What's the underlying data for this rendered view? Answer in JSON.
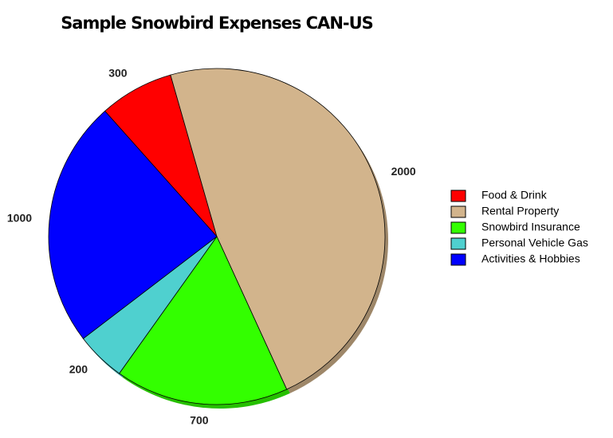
{
  "chart_data": {
    "type": "pie",
    "title": "Sample Snowbird Expenses CAN-US",
    "categories": [
      "Food & Drink",
      "Rental Property",
      "Snowbird Insurance",
      "Personal Vehicle Gas",
      "Activities & Hobbies"
    ],
    "values": [
      300,
      2000,
      700,
      200,
      1000
    ],
    "colors": [
      "#ff0000",
      "#d2b48c",
      "#33ff00",
      "#4fd0cf",
      "#0000ff"
    ],
    "legend": "right"
  }
}
